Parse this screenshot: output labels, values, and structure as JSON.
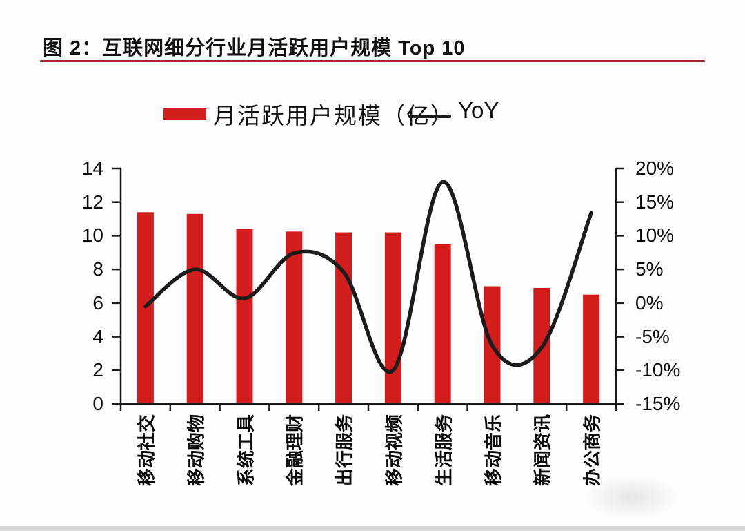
{
  "figure": {
    "title": "图 2：互联网细分行业月活跃用户规模 Top 10",
    "title_rule_color": "#a3282c"
  },
  "legend": {
    "bar": {
      "label": "月活跃用户规模（亿）",
      "color": "#d31d1d"
    },
    "line": {
      "label": "YoY",
      "color": "#1c1c1c"
    }
  },
  "chart_data": {
    "type": "bar",
    "title": "互联网细分行业月活跃用户规模 Top 10",
    "categories": [
      "移动社交",
      "移动购物",
      "系统工具",
      "金融理财",
      "出行服务",
      "移动视频",
      "生活服务",
      "移动音乐",
      "新闻资讯",
      "办公商务"
    ],
    "series": [
      {
        "name": "月活跃用户规模（亿）",
        "type": "bar",
        "axis": "left",
        "color": "#d31d1d",
        "values": [
          11.4,
          11.3,
          10.4,
          10.25,
          10.2,
          10.2,
          9.5,
          7.0,
          6.9,
          6.5
        ]
      },
      {
        "name": "YoY",
        "type": "line",
        "axis": "right",
        "color": "#1c1c1c",
        "smooth": true,
        "values": [
          -0.5,
          5.0,
          0.7,
          7.4,
          4.6,
          -10.0,
          18.0,
          -6.3,
          -6.6,
          13.4
        ]
      }
    ],
    "left_axis": {
      "min": 0,
      "max": 14,
      "ticks": [
        "14",
        "12",
        "10",
        "8",
        "6",
        "4",
        "2",
        "0"
      ]
    },
    "right_axis": {
      "min": -15,
      "max": 20,
      "unit": "%",
      "ticks": [
        "20%",
        "15%",
        "10%",
        "5%",
        "0%",
        "-5%",
        "-10%",
        "-15%"
      ]
    },
    "grid": false,
    "legend_position": "top"
  },
  "axis_color": "#1a1a1a"
}
